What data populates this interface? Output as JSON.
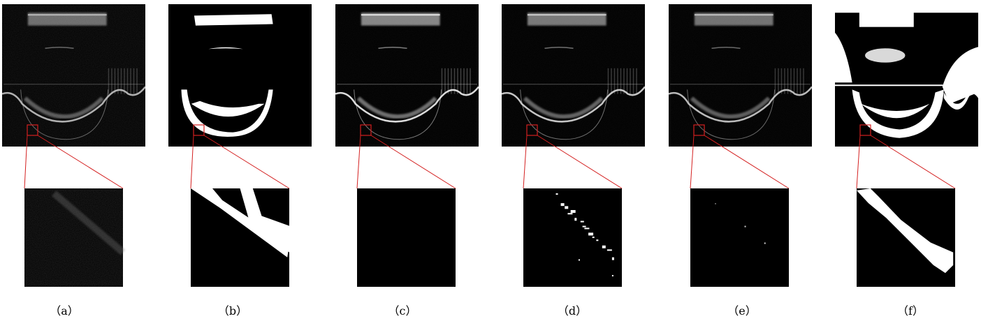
{
  "panels": [
    {
      "id": "a",
      "label": "（a）",
      "kind": "noisy-original"
    },
    {
      "id": "b",
      "label": "（b）",
      "kind": "ground-truth-mask"
    },
    {
      "id": "c",
      "label": "（c）",
      "kind": "denoise-method-1"
    },
    {
      "id": "d",
      "label": "（d）",
      "kind": "denoise-method-2"
    },
    {
      "id": "e",
      "label": "（e）",
      "kind": "denoise-method-3"
    },
    {
      "id": "f",
      "label": "（f）",
      "kind": "binary-segmentation"
    }
  ],
  "colors": {
    "background": "#ffffff",
    "image_black": "#000000",
    "structure": "#ffffff",
    "zoom_lines": "#d42020"
  }
}
